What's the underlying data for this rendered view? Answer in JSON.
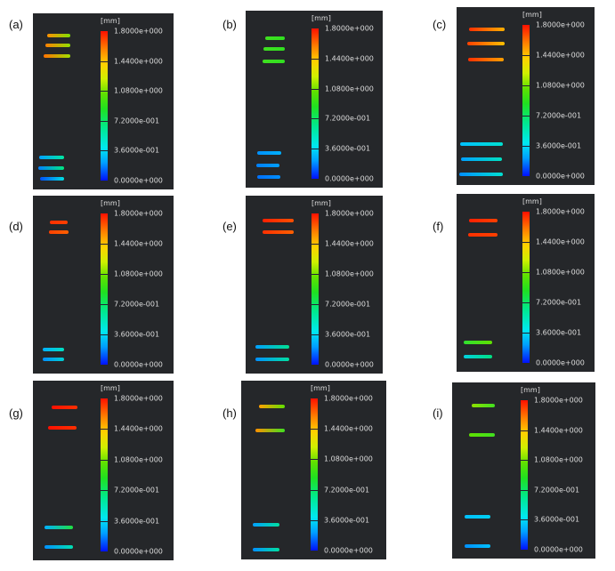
{
  "colorbar": {
    "unit": "[mm]",
    "ticks": [
      "1.8000e+000",
      "1.4400e+000",
      "1.0800e+000",
      "7.2000e-001",
      "3.6000e-001",
      "0.0000e+000"
    ]
  },
  "panels": [
    {
      "label": "(a)",
      "strokes": [
        [
          "#ff9000",
          "#80e000"
        ],
        [
          "#ff8000",
          "#90e000"
        ],
        [
          "#ff7000",
          "#a0e000"
        ],
        [
          "#00a0ff",
          "#00e8a0"
        ],
        [
          "#0080ff",
          "#00e880"
        ],
        [
          "#0050ff",
          "#00e0e0"
        ]
      ]
    },
    {
      "label": "(b)",
      "strokes": [
        [
          "#40e020",
          "#30e020"
        ],
        [
          "#40e020",
          "#30e020"
        ],
        [
          "#40e020",
          "#30e020"
        ],
        [
          "#0090ff",
          "#00b0ff"
        ],
        [
          "#0080ff",
          "#00a0ff"
        ],
        [
          "#0070ff",
          "#0090ff"
        ]
      ]
    },
    {
      "label": "(c)",
      "strokes": [
        [
          "#ff3000",
          "#ffb000"
        ],
        [
          "#ff4000",
          "#ffc000"
        ],
        [
          "#ff3000",
          "#ffa000"
        ],
        [
          "#00c0ff",
          "#00e0d0"
        ],
        [
          "#00a0ff",
          "#00e0c0"
        ],
        [
          "#0090ff",
          "#00e0d0"
        ]
      ]
    },
    {
      "label": "(d)",
      "strokes": [
        [
          "#ff3000",
          "#ff4000"
        ],
        [
          "#ff4000",
          "#ff6000"
        ],
        [
          "#00b0ff",
          "#00e0c0"
        ],
        [
          "#0090ff",
          "#00d0d0"
        ]
      ]
    },
    {
      "label": "(e)",
      "strokes": [
        [
          "#ff2000",
          "#ff5000"
        ],
        [
          "#ff3000",
          "#ff6000"
        ],
        [
          "#00a0ff",
          "#00e090"
        ],
        [
          "#0090ff",
          "#00e0a0"
        ]
      ]
    },
    {
      "label": "(f)",
      "strokes": [
        [
          "#ff2000",
          "#ff4000"
        ],
        [
          "#ff3000",
          "#ff4000"
        ],
        [
          "#30e030",
          "#60e000"
        ],
        [
          "#00d0e0",
          "#00e080"
        ]
      ]
    },
    {
      "label": "(g)",
      "strokes": [
        [
          "#ff1000",
          "#ff3000"
        ],
        [
          "#ff1000",
          "#ff3000"
        ],
        [
          "#00b0ff",
          "#20e040"
        ],
        [
          "#0090ff",
          "#00e0b0"
        ]
      ]
    },
    {
      "label": "(h)",
      "strokes": [
        [
          "#ffa000",
          "#60e000"
        ],
        [
          "#ff9000",
          "#40e020"
        ],
        [
          "#00a0ff",
          "#00e0a0"
        ],
        [
          "#0090ff",
          "#00e0a0"
        ]
      ]
    },
    {
      "label": "(i)",
      "strokes": [
        [
          "#90e000",
          "#40e020"
        ],
        [
          "#60e000",
          "#40e020"
        ],
        [
          "#00c0ff",
          "#00d0f0"
        ],
        [
          "#0090ff",
          "#00c0ff"
        ]
      ]
    }
  ]
}
